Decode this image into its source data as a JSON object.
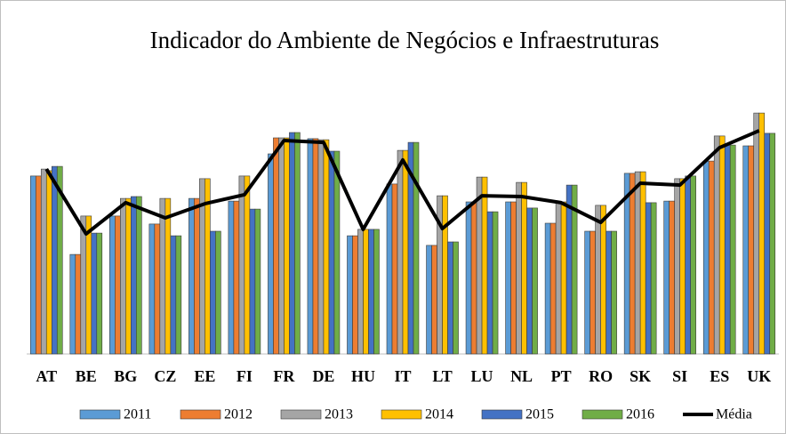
{
  "chart_data": {
    "type": "bar",
    "title": "Indicador do Ambiente de Negócios e Infraestruturas",
    "categories": [
      "AT",
      "BE",
      "BG",
      "CZ",
      "EE",
      "FI",
      "FR",
      "DE",
      "HU",
      "IT",
      "LT",
      "LU",
      "NL",
      "PT",
      "RO",
      "SK",
      "SI",
      "ES",
      "UK"
    ],
    "ylim": [
      0,
      100
    ],
    "legend": "bottom",
    "series": [
      {
        "name": "2011",
        "color": "#5b9bd5",
        "values": [
          66.7,
          37.3,
          51.7,
          48.7,
          58.3,
          57.3,
          75,
          80.7,
          44.3,
          63.7,
          40.7,
          57,
          57,
          49,
          46,
          67.7,
          57.3,
          72.3,
          78
        ]
      },
      {
        "name": "2012",
        "color": "#ed7d31",
        "values": [
          66.7,
          37.3,
          51.7,
          48.7,
          58.3,
          57.3,
          81,
          80.7,
          44.3,
          63.7,
          40.7,
          57,
          57,
          49,
          46,
          67.7,
          57.3,
          72.3,
          78
        ]
      },
      {
        "name": "2013",
        "color": "#a5a5a5",
        "values": [
          69.3,
          51.7,
          58.3,
          58.3,
          65.7,
          66.7,
          81,
          80.3,
          46.7,
          76.3,
          59.3,
          66.3,
          64.3,
          57,
          55.7,
          68.3,
          65.7,
          81.7,
          90.3
        ]
      },
      {
        "name": "2014",
        "color": "#ffc000",
        "values": [
          68.7,
          51.7,
          58.3,
          58.3,
          65.7,
          66.7,
          81,
          80.3,
          46.7,
          76.3,
          59.3,
          66.3,
          64.3,
          57,
          55.7,
          68.3,
          65.7,
          81.7,
          90.3
        ]
      },
      {
        "name": "2015",
        "color": "#4472c4",
        "values": [
          70.3,
          45.3,
          59,
          44.3,
          46,
          54.3,
          83,
          76,
          46.7,
          79.3,
          42,
          53.3,
          54.7,
          63.3,
          46,
          56.7,
          66.7,
          78.3,
          82.7
        ]
      },
      {
        "name": "2016",
        "color": "#70ad47",
        "values": [
          70.3,
          45.3,
          59,
          44.3,
          46,
          54.3,
          83,
          76,
          46.7,
          79.3,
          42,
          53.3,
          54.7,
          63.3,
          46,
          56.7,
          66.7,
          78.3,
          82.7
        ]
      },
      {
        "name": "Média",
        "color": "#000000",
        "kind": "line",
        "values": [
          69.3,
          45,
          56.7,
          51,
          56.3,
          59.7,
          80,
          79.3,
          46.7,
          72.7,
          47,
          59.3,
          59,
          56.7,
          49.3,
          64,
          63.3,
          77.3,
          83.7
        ]
      }
    ]
  }
}
